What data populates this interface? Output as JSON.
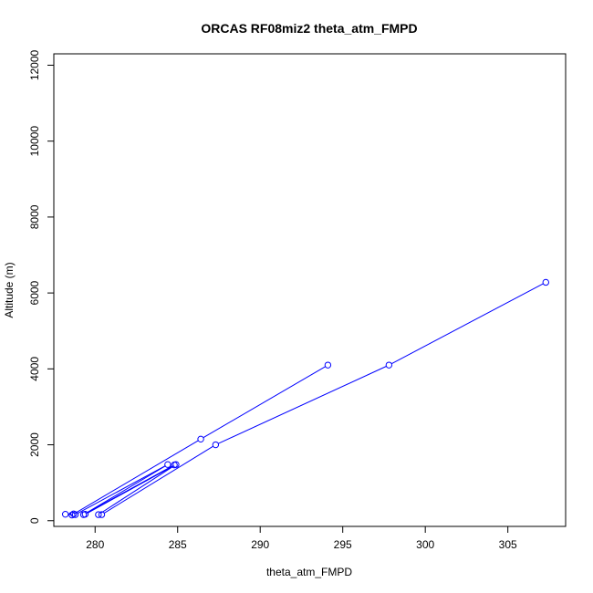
{
  "chart_data": {
    "type": "line",
    "title": "ORCAS RF08miz2 theta_atm_FMPD",
    "xlabel": "theta_atm_FMPD",
    "ylabel": "Altitude (m)",
    "xlim": [
      277.5,
      308.5
    ],
    "ylim": [
      -150,
      12300
    ],
    "xticks": [
      280,
      285,
      290,
      295,
      300,
      305
    ],
    "xtick_labels": [
      "280",
      "285",
      "290",
      "295",
      "300",
      "305"
    ],
    "yticks": [
      0,
      2000,
      4000,
      6000,
      8000,
      10000,
      12000
    ],
    "ytick_labels": [
      "0",
      "2000",
      "4000",
      "6000",
      "8000",
      "10000",
      "12000"
    ],
    "grid": false,
    "color": "#0000ff",
    "series": [
      {
        "x": [
          294.1,
          286.4,
          278.6,
          278.7,
          278.2,
          278.8,
          284.4,
          279.3,
          284.8,
          279.4,
          284.9,
          280.2,
          280.4,
          287.3,
          297.8,
          307.3
        ],
        "y": [
          4100,
          2150,
          150,
          180,
          170,
          160,
          1480,
          160,
          1470,
          170,
          1480,
          160,
          160,
          2000,
          4100,
          6280
        ]
      }
    ]
  }
}
